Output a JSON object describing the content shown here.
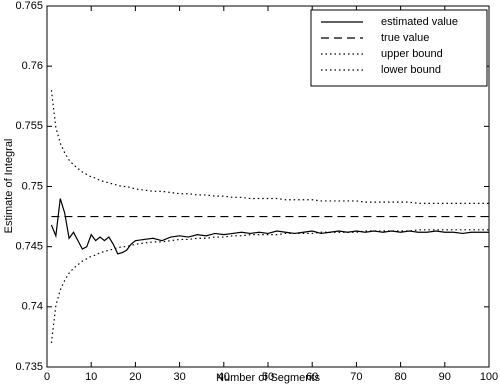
{
  "chart_data": {
    "type": "line",
    "xlabel": "Number of Segments",
    "ylabel": "Estimate of Integral",
    "x": [
      1,
      2,
      3,
      4,
      5,
      6,
      7,
      8,
      9,
      10,
      11,
      12,
      13,
      14,
      15,
      16,
      17,
      18,
      19,
      20,
      22,
      24,
      26,
      28,
      30,
      32,
      34,
      36,
      38,
      40,
      42,
      44,
      46,
      48,
      50,
      52,
      54,
      56,
      58,
      60,
      62,
      64,
      66,
      68,
      70,
      72,
      74,
      76,
      78,
      80,
      82,
      84,
      86,
      88,
      90,
      92,
      94,
      96,
      98,
      100
    ],
    "series": [
      {
        "name": "estimated value",
        "color": "#000000",
        "style": "solid",
        "values": [
          0.7468,
          0.7459,
          0.749,
          0.7478,
          0.7457,
          0.7462,
          0.7455,
          0.7448,
          0.745,
          0.746,
          0.7455,
          0.7458,
          0.7455,
          0.7458,
          0.7452,
          0.7444,
          0.7445,
          0.7447,
          0.7452,
          0.7455,
          0.7456,
          0.7457,
          0.7455,
          0.7458,
          0.7459,
          0.7458,
          0.746,
          0.7459,
          0.7461,
          0.746,
          0.7461,
          0.7462,
          0.7461,
          0.7462,
          0.7461,
          0.7463,
          0.7462,
          0.7461,
          0.7462,
          0.7463,
          0.7461,
          0.7462,
          0.7463,
          0.7462,
          0.7463,
          0.7462,
          0.7463,
          0.7462,
          0.7463,
          0.7462,
          0.7463,
          0.7462,
          0.7462,
          0.7463,
          0.7462,
          0.7462,
          0.7461,
          0.7462,
          0.7462,
          0.7462
        ]
      },
      {
        "name": "true value",
        "color": "#000000",
        "style": "dashed",
        "values": [
          0.7475,
          0.7475,
          0.7475,
          0.7475,
          0.7475,
          0.7475,
          0.7475,
          0.7475,
          0.7475,
          0.7475,
          0.7475,
          0.7475,
          0.7475,
          0.7475,
          0.7475,
          0.7475,
          0.7475,
          0.7475,
          0.7475,
          0.7475,
          0.7475,
          0.7475,
          0.7475,
          0.7475,
          0.7475,
          0.7475,
          0.7475,
          0.7475,
          0.7475,
          0.7475,
          0.7475,
          0.7475,
          0.7475,
          0.7475,
          0.7475,
          0.7475,
          0.7475,
          0.7475,
          0.7475,
          0.7475,
          0.7475,
          0.7475,
          0.7475,
          0.7475,
          0.7475,
          0.7475,
          0.7475,
          0.7475,
          0.7475,
          0.7475,
          0.7475,
          0.7475,
          0.7475,
          0.7475,
          0.7475,
          0.7475,
          0.7475,
          0.7475,
          0.7475,
          0.7475
        ]
      },
      {
        "name": "upper bound",
        "color": "#000000",
        "style": "dotted",
        "values": [
          0.758,
          0.7549,
          0.7536,
          0.7528,
          0.7522,
          0.7518,
          0.7515,
          0.7512,
          0.751,
          0.7508,
          0.7507,
          0.7505,
          0.7504,
          0.7503,
          0.7502,
          0.7501,
          0.75,
          0.75,
          0.7499,
          0.7498,
          0.7497,
          0.7496,
          0.7496,
          0.7495,
          0.7494,
          0.7494,
          0.7493,
          0.7493,
          0.7492,
          0.7492,
          0.7491,
          0.7491,
          0.749,
          0.749,
          0.749,
          0.749,
          0.7489,
          0.7489,
          0.7489,
          0.7489,
          0.7488,
          0.7488,
          0.7488,
          0.7488,
          0.7488,
          0.7487,
          0.7487,
          0.7487,
          0.7487,
          0.7487,
          0.7487,
          0.7486,
          0.7486,
          0.7486,
          0.7486,
          0.7486,
          0.7486,
          0.7486,
          0.7486,
          0.7486
        ]
      },
      {
        "name": "lower bound",
        "color": "#000000",
        "style": "dotted",
        "values": [
          0.737,
          0.7401,
          0.7414,
          0.7422,
          0.7428,
          0.7432,
          0.7435,
          0.7438,
          0.744,
          0.7442,
          0.7443,
          0.7445,
          0.7446,
          0.7447,
          0.7448,
          0.7449,
          0.745,
          0.745,
          0.7451,
          0.7452,
          0.7453,
          0.7454,
          0.7454,
          0.7455,
          0.7456,
          0.7456,
          0.7457,
          0.7457,
          0.7458,
          0.7458,
          0.7459,
          0.7459,
          0.746,
          0.746,
          0.746,
          0.746,
          0.7461,
          0.7461,
          0.7461,
          0.7461,
          0.7462,
          0.7462,
          0.7462,
          0.7462,
          0.7462,
          0.7463,
          0.7463,
          0.7463,
          0.7463,
          0.7463,
          0.7463,
          0.7464,
          0.7464,
          0.7464,
          0.7464,
          0.7464,
          0.7464,
          0.7464,
          0.7464,
          0.7464
        ]
      }
    ],
    "xlim": [
      0,
      100
    ],
    "xticks": [
      0,
      10,
      20,
      30,
      40,
      50,
      60,
      70,
      80,
      90,
      100
    ],
    "ylim": [
      0.735,
      0.765
    ],
    "yticks": [
      0.735,
      0.74,
      0.745,
      0.75,
      0.755,
      0.76,
      0.765
    ],
    "legend": "upper right"
  }
}
